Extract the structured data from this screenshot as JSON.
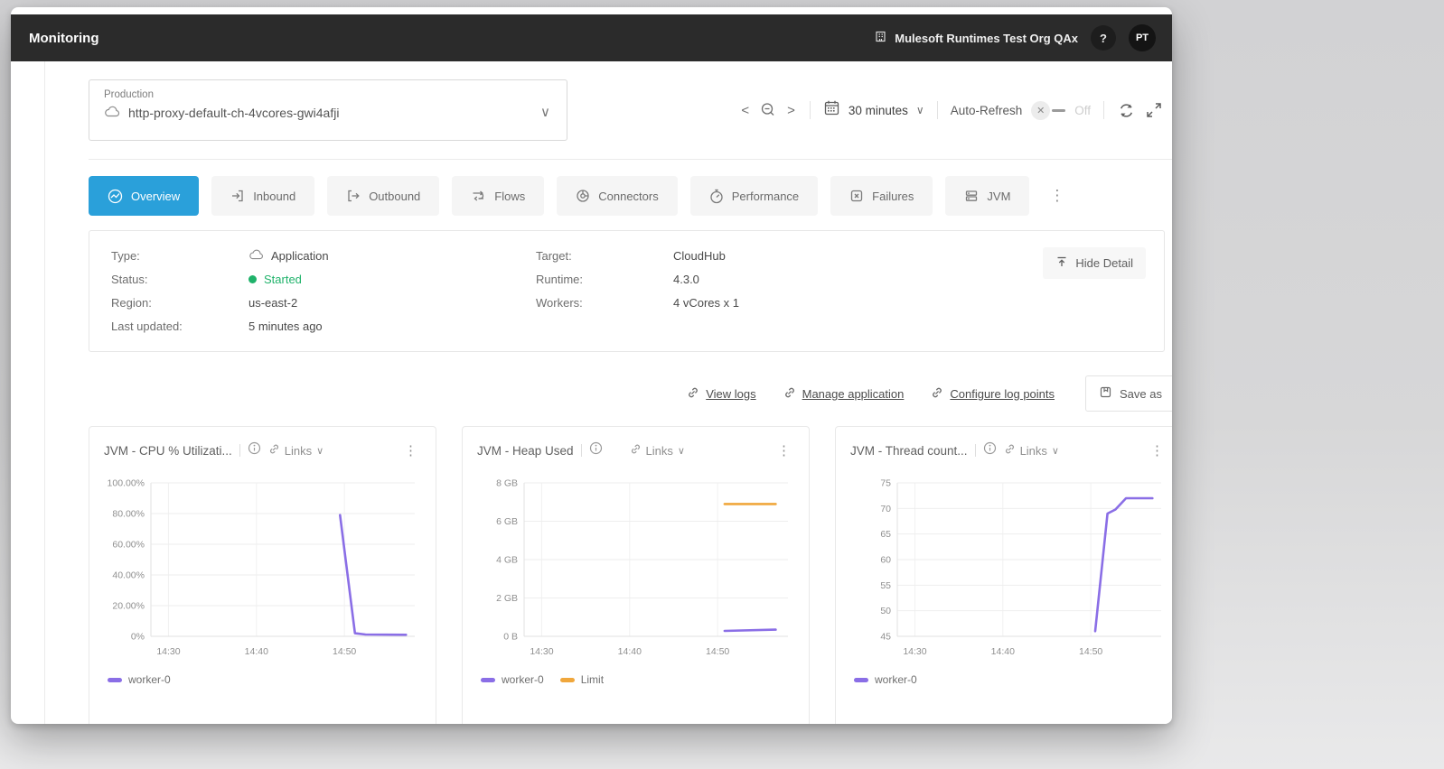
{
  "header": {
    "title": "Monitoring",
    "org_name": "Mulesoft Runtimes Test Org QAx",
    "help": "?",
    "avatar_initials": "PT"
  },
  "env_selector": {
    "environment": "Production",
    "app_name": "http-proxy-default-ch-4vcores-gwi4afji"
  },
  "time_controls": {
    "range": "30 minutes",
    "auto_refresh_label": "Auto-Refresh",
    "auto_refresh_state": "Off"
  },
  "tabs": [
    {
      "label": "Overview",
      "active": true
    },
    {
      "label": "Inbound",
      "active": false
    },
    {
      "label": "Outbound",
      "active": false
    },
    {
      "label": "Flows",
      "active": false
    },
    {
      "label": "Connectors",
      "active": false
    },
    {
      "label": "Performance",
      "active": false
    },
    {
      "label": "Failures",
      "active": false
    },
    {
      "label": "JVM",
      "active": false
    }
  ],
  "detail_panel": {
    "rows_left": [
      {
        "label": "Type:",
        "value": "Application"
      },
      {
        "label": "Status:",
        "value": "Started"
      },
      {
        "label": "Region:",
        "value": "us-east-2"
      },
      {
        "label": "Last updated:",
        "value": "5 minutes ago"
      }
    ],
    "rows_right": [
      {
        "label": "Target:",
        "value": "CloudHub"
      },
      {
        "label": "Runtime:",
        "value": "4.3.0"
      },
      {
        "label": "Workers:",
        "value": "4 vCores x 1"
      }
    ],
    "hide_detail": "Hide Detail"
  },
  "links": {
    "view_logs": "View logs",
    "manage_application": "Manage application",
    "configure_log_points": "Configure log points",
    "save_as": "Save as"
  },
  "chart_common": {
    "links_label": "Links"
  },
  "icons": {
    "kebab": "⋮",
    "chevron_down": "∨",
    "prev": "<",
    "next": ">"
  },
  "colors": {
    "accent_blue": "#2aa0da",
    "status_green": "#1fb26a",
    "series_purple": "#8a6ee6",
    "series_orange": "#f0a73c"
  },
  "chart_data": [
    {
      "type": "line",
      "title": "JVM - CPU % Utilizati...",
      "xlabel": "",
      "ylabel": "",
      "grid": true,
      "legend_position": "bottom",
      "xlim": [
        868,
        898
      ],
      "ylim": [
        0,
        100
      ],
      "yticks": [
        {
          "v": 100,
          "label": "100.00%"
        },
        {
          "v": 80,
          "label": "80.00%"
        },
        {
          "v": 60,
          "label": "60.00%"
        },
        {
          "v": 40,
          "label": "40.00%"
        },
        {
          "v": 20,
          "label": "20.00%"
        },
        {
          "v": 0,
          "label": "0%"
        }
      ],
      "xticks": [
        {
          "v": 870,
          "label": "14:30"
        },
        {
          "v": 880,
          "label": "14:40"
        },
        {
          "v": 890,
          "label": "14:50"
        }
      ],
      "series": [
        {
          "name": "worker-0",
          "color": "#8a6ee6",
          "points": [
            [
              889.5,
              79
            ],
            [
              891.2,
              2
            ],
            [
              892.4,
              1.2
            ],
            [
              897,
              1
            ]
          ]
        }
      ]
    },
    {
      "type": "line",
      "title": "JVM - Heap Used",
      "xlabel": "",
      "ylabel": "",
      "grid": true,
      "legend_position": "bottom",
      "xlim": [
        868,
        898
      ],
      "ylim": [
        0,
        8
      ],
      "yticks": [
        {
          "v": 8,
          "label": "8 GB"
        },
        {
          "v": 6,
          "label": "6 GB"
        },
        {
          "v": 4,
          "label": "4 GB"
        },
        {
          "v": 2,
          "label": "2 GB"
        },
        {
          "v": 0,
          "label": "0 B"
        }
      ],
      "xticks": [
        {
          "v": 870,
          "label": "14:30"
        },
        {
          "v": 880,
          "label": "14:40"
        },
        {
          "v": 890,
          "label": "14:50"
        }
      ],
      "series": [
        {
          "name": "worker-0",
          "color": "#8a6ee6",
          "points": [
            [
              890.8,
              0.28
            ],
            [
              896.6,
              0.35
            ]
          ]
        },
        {
          "name": "Limit",
          "color": "#f0a73c",
          "points": [
            [
              890.8,
              6.9
            ],
            [
              896.6,
              6.9
            ]
          ]
        }
      ]
    },
    {
      "type": "line",
      "title": "JVM - Thread count...",
      "xlabel": "",
      "ylabel": "",
      "grid": true,
      "legend_position": "bottom",
      "xlim": [
        868,
        898
      ],
      "ylim": [
        45,
        75
      ],
      "yticks": [
        {
          "v": 75,
          "label": "75"
        },
        {
          "v": 70,
          "label": "70"
        },
        {
          "v": 65,
          "label": "65"
        },
        {
          "v": 60,
          "label": "60"
        },
        {
          "v": 55,
          "label": "55"
        },
        {
          "v": 50,
          "label": "50"
        },
        {
          "v": 45,
          "label": "45"
        }
      ],
      "xticks": [
        {
          "v": 870,
          "label": "14:30"
        },
        {
          "v": 880,
          "label": "14:40"
        },
        {
          "v": 890,
          "label": "14:50"
        }
      ],
      "series": [
        {
          "name": "worker-0",
          "color": "#8a6ee6",
          "points": [
            [
              890.5,
              46
            ],
            [
              891.9,
              69
            ],
            [
              892.8,
              69.8
            ],
            [
              894,
              72
            ],
            [
              897,
              72
            ]
          ]
        }
      ]
    }
  ]
}
